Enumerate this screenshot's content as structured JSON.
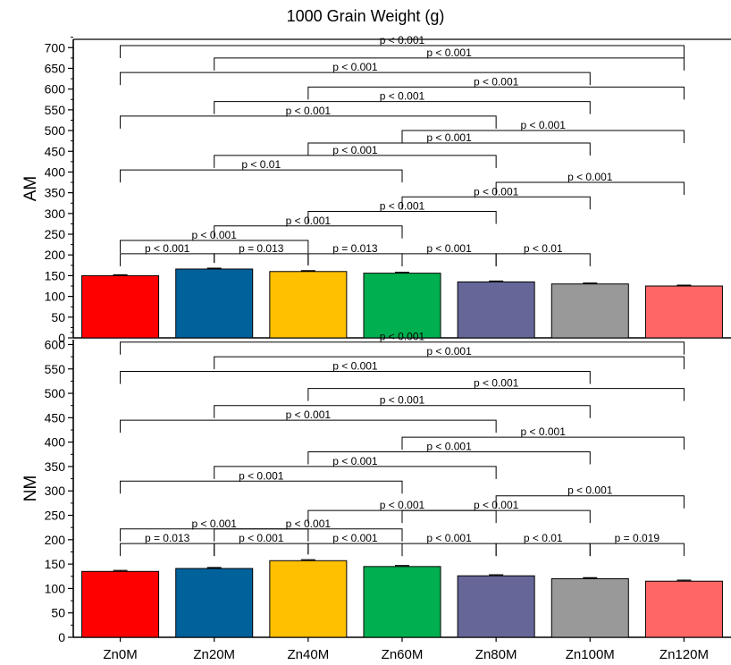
{
  "title": "1000 Grain Weight (g)",
  "chart_data": [
    {
      "type": "bar",
      "panel": "AM",
      "ylabel": "AM",
      "categories": [
        "Zn0M",
        "Zn20M",
        "Zn40M",
        "Zn60M",
        "Zn80M",
        "Zn100M",
        "Zn120M"
      ],
      "values": [
        150,
        166,
        160,
        156,
        135,
        130,
        125
      ],
      "errors": [
        2,
        2,
        2,
        2,
        2,
        2,
        2
      ],
      "ylim": [
        0,
        720
      ],
      "yticks": [
        0,
        50,
        100,
        150,
        200,
        250,
        300,
        350,
        400,
        450,
        500,
        550,
        600,
        650,
        700
      ],
      "comparisons": [
        {
          "a": 0,
          "b": 1,
          "y": 203,
          "label": "p < 0.001"
        },
        {
          "a": 1,
          "b": 2,
          "y": 203,
          "label": "p = 0.013"
        },
        {
          "a": 2,
          "b": 3,
          "y": 203,
          "label": "p = 0.013"
        },
        {
          "a": 3,
          "b": 4,
          "y": 203,
          "label": "p < 0.001"
        },
        {
          "a": 4,
          "b": 5,
          "y": 203,
          "label": "p < 0.01"
        },
        {
          "a": 0,
          "b": 2,
          "y": 235,
          "label": "p < 0.001"
        },
        {
          "a": 1,
          "b": 3,
          "y": 270,
          "label": "p < 0.001"
        },
        {
          "a": 2,
          "b": 4,
          "y": 305,
          "label": "p < 0.001"
        },
        {
          "a": 3,
          "b": 5,
          "y": 340,
          "label": "p < 0.001"
        },
        {
          "a": 4,
          "b": 6,
          "y": 375,
          "label": "p < 0.001"
        },
        {
          "a": 0,
          "b": 3,
          "y": 405,
          "label": "p < 0.01"
        },
        {
          "a": 1,
          "b": 4,
          "y": 440,
          "label": "p < 0.001"
        },
        {
          "a": 2,
          "b": 5,
          "y": 470,
          "label": "p < 0.001"
        },
        {
          "a": 3,
          "b": 6,
          "y": 500,
          "label": "p < 0.001"
        },
        {
          "a": 0,
          "b": 4,
          "y": 535,
          "label": "p < 0.001"
        },
        {
          "a": 1,
          "b": 5,
          "y": 570,
          "label": "p < 0.001"
        },
        {
          "a": 2,
          "b": 6,
          "y": 605,
          "label": "p < 0.001"
        },
        {
          "a": 0,
          "b": 5,
          "y": 640,
          "label": "p < 0.001"
        },
        {
          "a": 1,
          "b": 6,
          "y": 675,
          "label": "p < 0.001"
        },
        {
          "a": 0,
          "b": 6,
          "y": 705,
          "label": "p < 0.001"
        }
      ]
    },
    {
      "type": "bar",
      "panel": "NM",
      "ylabel": "NM",
      "categories": [
        "Zn0M",
        "Zn20M",
        "Zn40M",
        "Zn60M",
        "Zn80M",
        "Zn100M",
        "Zn120M"
      ],
      "values": [
        135,
        141,
        157,
        145,
        126,
        120,
        115
      ],
      "errors": [
        2,
        2,
        2,
        2,
        2,
        2,
        2
      ],
      "ylim": [
        0,
        610
      ],
      "yticks": [
        0,
        50,
        100,
        150,
        200,
        250,
        300,
        350,
        400,
        450,
        500,
        550,
        600
      ],
      "comparisons": [
        {
          "a": 0,
          "b": 1,
          "y": 192,
          "label": "p = 0.013"
        },
        {
          "a": 1,
          "b": 2,
          "y": 192,
          "label": "p < 0.001"
        },
        {
          "a": 2,
          "b": 3,
          "y": 192,
          "label": "p < 0.001"
        },
        {
          "a": 3,
          "b": 4,
          "y": 192,
          "label": "p < 0.001"
        },
        {
          "a": 4,
          "b": 5,
          "y": 192,
          "label": "p < 0.01"
        },
        {
          "a": 5,
          "b": 6,
          "y": 192,
          "label": "p = 0.019"
        },
        {
          "a": 0,
          "b": 2,
          "y": 222,
          "label": "p < 0.001"
        },
        {
          "a": 1,
          "b": 3,
          "y": 222,
          "label": "p < 0.001"
        },
        {
          "a": 2,
          "b": 4,
          "y": 260,
          "label": "p < 0.001"
        },
        {
          "a": 3,
          "b": 5,
          "y": 260,
          "label": "p < 0.001"
        },
        {
          "a": 4,
          "b": 6,
          "y": 290,
          "label": "p < 0.001"
        },
        {
          "a": 0,
          "b": 3,
          "y": 320,
          "label": "p < 0.001"
        },
        {
          "a": 1,
          "b": 4,
          "y": 350,
          "label": "p < 0.001"
        },
        {
          "a": 2,
          "b": 5,
          "y": 380,
          "label": "p < 0.001"
        },
        {
          "a": 3,
          "b": 6,
          "y": 410,
          "label": "p < 0.001"
        },
        {
          "a": 0,
          "b": 4,
          "y": 445,
          "label": "p < 0.001"
        },
        {
          "a": 1,
          "b": 5,
          "y": 475,
          "label": "p < 0.001"
        },
        {
          "a": 2,
          "b": 6,
          "y": 510,
          "label": "p < 0.001"
        },
        {
          "a": 0,
          "b": 5,
          "y": 545,
          "label": "p < 0.001"
        },
        {
          "a": 1,
          "b": 6,
          "y": 575,
          "label": "p < 0.001"
        },
        {
          "a": 0,
          "b": 6,
          "y": 605,
          "label": "p < 0.001"
        }
      ]
    }
  ],
  "colors": [
    "#ff0000",
    "#00619b",
    "#ffc000",
    "#00b050",
    "#666699",
    "#999999",
    "#ff6666"
  ]
}
